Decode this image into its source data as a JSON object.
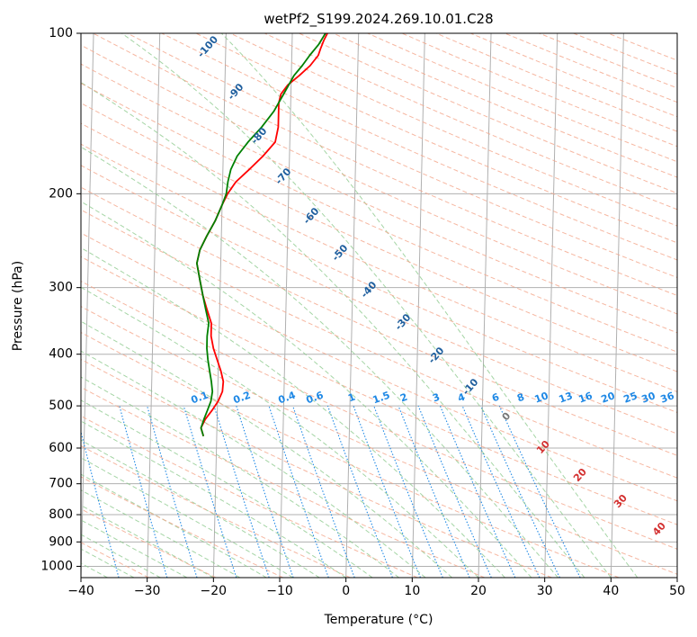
{
  "chart_data": {
    "type": "skew-t",
    "title": "wetPf2_S199.2024.269.10.01.C28",
    "xlabel": "Temperature (°C)",
    "ylabel": "Pressure (hPa)",
    "xlim": [
      -40,
      50
    ],
    "ylim": [
      1050,
      100
    ],
    "y_scale": "log",
    "grid": true,
    "x_ticks": [
      "−40",
      "−30",
      "−20",
      "−10",
      "0",
      "10",
      "20",
      "30",
      "40",
      "50"
    ],
    "y_ticks": [
      "100",
      "200",
      "300",
      "400",
      "500",
      "600",
      "700",
      "800",
      "900",
      "1000"
    ],
    "series": [
      {
        "color": "#ff0000",
        "points": [
          [
            570,
            -22
          ],
          [
            550,
            -22.4
          ],
          [
            530,
            -21.8
          ],
          [
            510,
            -20.8
          ],
          [
            490,
            -19.9
          ],
          [
            470,
            -19.3
          ],
          [
            450,
            -19.2
          ],
          [
            430,
            -19.6
          ],
          [
            410,
            -20.2
          ],
          [
            390,
            -20.8
          ],
          [
            370,
            -21.2
          ],
          [
            350,
            -21.2
          ],
          [
            330,
            -21.9
          ],
          [
            310,
            -22.6
          ],
          [
            290,
            -23.1
          ],
          [
            270,
            -23.6
          ],
          [
            255,
            -23.2
          ],
          [
            240,
            -22.2
          ],
          [
            225,
            -21
          ],
          [
            210,
            -20
          ],
          [
            200,
            -19.2
          ],
          [
            190,
            -18
          ],
          [
            180,
            -16
          ],
          [
            170,
            -14
          ],
          [
            160,
            -12.2
          ],
          [
            150,
            -11.8
          ],
          [
            140,
            -11.8
          ],
          [
            135,
            -11.8
          ],
          [
            130,
            -11.5
          ],
          [
            125,
            -10.5
          ],
          [
            120,
            -8.8
          ],
          [
            115,
            -7.2
          ],
          [
            110,
            -6
          ],
          [
            107,
            -5.7
          ],
          [
            103,
            -5.2
          ],
          [
            100,
            -4.7
          ]
        ]
      },
      {
        "color": "#008000",
        "points": [
          [
            570,
            -22
          ],
          [
            550,
            -22.4
          ],
          [
            530,
            -22
          ],
          [
            510,
            -21.5
          ],
          [
            490,
            -21
          ],
          [
            470,
            -20.8
          ],
          [
            450,
            -21
          ],
          [
            430,
            -21.3
          ],
          [
            410,
            -21.6
          ],
          [
            390,
            -21.8
          ],
          [
            370,
            -21.8
          ],
          [
            350,
            -21.6
          ],
          [
            330,
            -22.1
          ],
          [
            310,
            -22.6
          ],
          [
            290,
            -23.1
          ],
          [
            270,
            -23.6
          ],
          [
            255,
            -23.2
          ],
          [
            240,
            -22.2
          ],
          [
            225,
            -21
          ],
          [
            210,
            -20
          ],
          [
            200,
            -19.4
          ],
          [
            190,
            -19.2
          ],
          [
            180,
            -18.8
          ],
          [
            170,
            -17.9
          ],
          [
            160,
            -16.3
          ],
          [
            150,
            -14.3
          ],
          [
            140,
            -12.5
          ],
          [
            130,
            -11.1
          ],
          [
            120,
            -9.6
          ],
          [
            115,
            -8.4
          ],
          [
            110,
            -7.3
          ],
          [
            105,
            -6
          ],
          [
            100,
            -5
          ]
        ]
      }
    ],
    "dry_adiabats": [
      -100,
      -90,
      -80,
      -70,
      -60,
      -50,
      -40,
      -30,
      -20,
      -10,
      0,
      10,
      20,
      30,
      40
    ],
    "mixing_ratio_lines": [
      "0.1",
      "0.2",
      "0.4",
      "0.6",
      "1",
      "1.5",
      "2",
      "3",
      "4",
      "6",
      "8",
      "10",
      "13",
      "16",
      "20",
      "25",
      "30",
      "36"
    ],
    "mixing_ratio_values": [
      0.1,
      0.2,
      0.4,
      0.6,
      1,
      1.5,
      2,
      3,
      4,
      6,
      8,
      10,
      13,
      16,
      20,
      25,
      30,
      36
    ],
    "moist_adiabat_labels": [
      "0",
      "10",
      "20",
      "30",
      "40"
    ]
  }
}
